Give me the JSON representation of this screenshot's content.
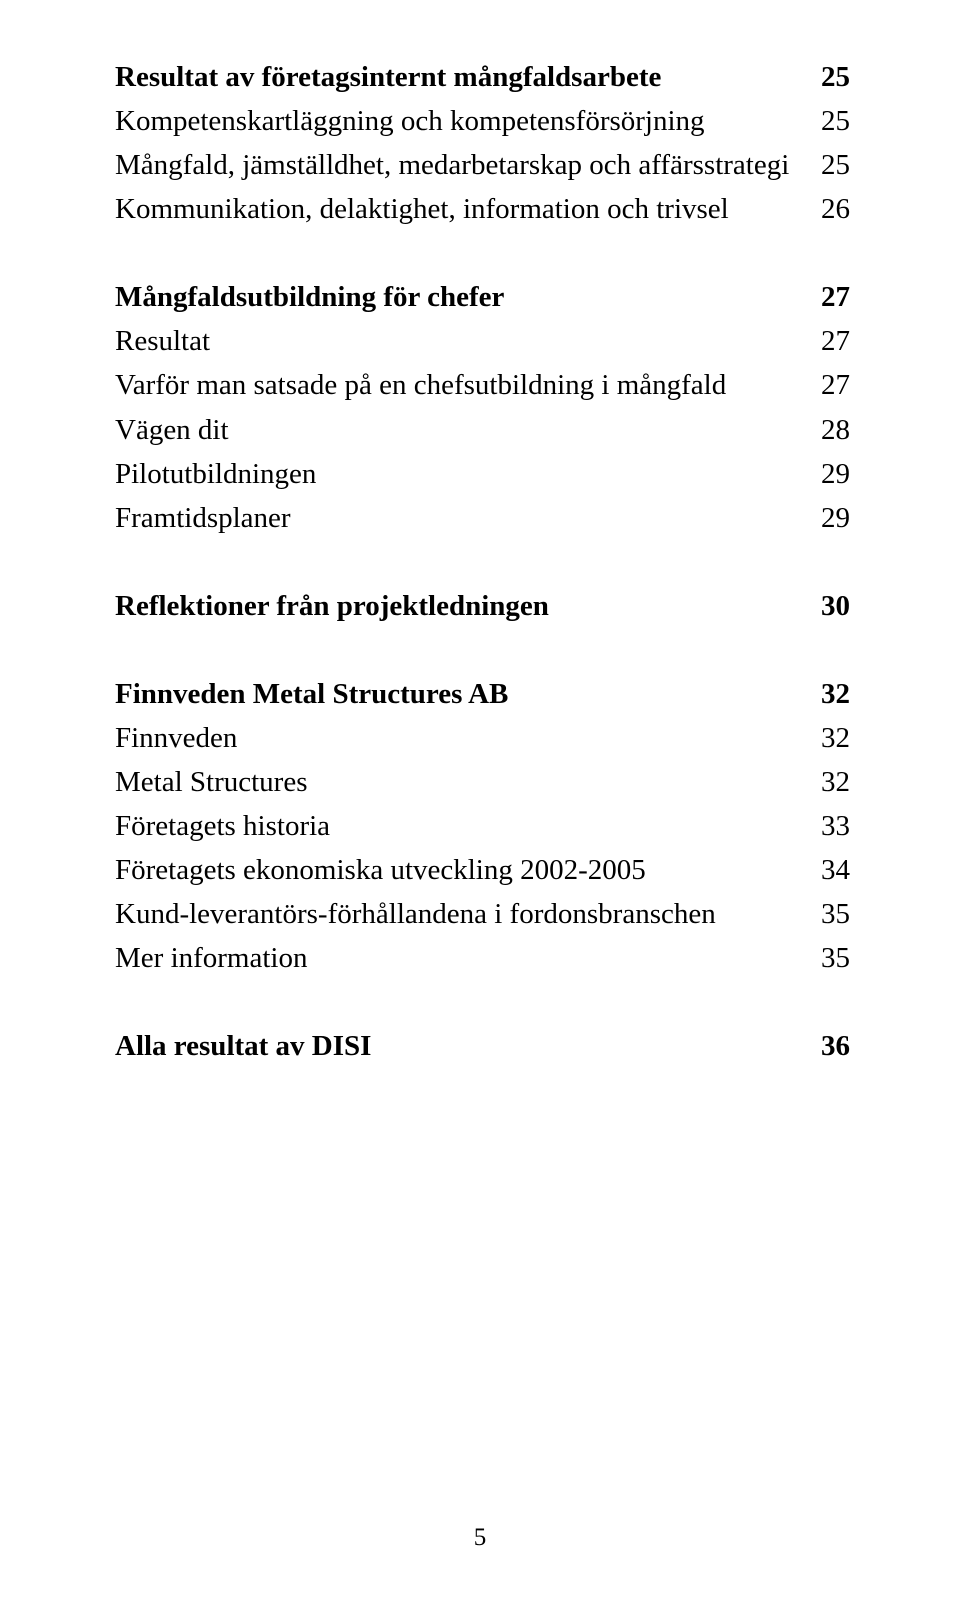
{
  "toc": [
    {
      "label": "Resultat av företagsinternt mångfaldsarbete",
      "page": "25",
      "bold": true,
      "gapBefore": false
    },
    {
      "label": "Kompetenskartläggning och kompetensförsörjning",
      "page": "25",
      "bold": false,
      "gapBefore": false
    },
    {
      "label": "Mångfald, jämställdhet, medarbetarskap och affärsstrategi",
      "page": "25",
      "bold": false,
      "gapBefore": false
    },
    {
      "label": "Kommunikation, delaktighet, information och trivsel",
      "page": "26",
      "bold": false,
      "gapBefore": false
    },
    {
      "label": "Mångfaldsutbildning för chefer",
      "page": "27",
      "bold": true,
      "gapBefore": true
    },
    {
      "label": "Resultat",
      "page": "27",
      "bold": false,
      "gapBefore": false
    },
    {
      "label": "Varför man satsade på en chefsutbildning i mångfald",
      "page": "27",
      "bold": false,
      "gapBefore": false
    },
    {
      "label": "Vägen dit",
      "page": "28",
      "bold": false,
      "gapBefore": false
    },
    {
      "label": "Pilotutbildningen",
      "page": "29",
      "bold": false,
      "gapBefore": false
    },
    {
      "label": "Framtidsplaner",
      "page": "29",
      "bold": false,
      "gapBefore": false
    },
    {
      "label": "Reflektioner från projektledningen",
      "page": "30",
      "bold": true,
      "gapBefore": true
    },
    {
      "label": "Finnveden Metal Structures AB",
      "page": "32",
      "bold": true,
      "gapBefore": true
    },
    {
      "label": "Finnveden",
      "page": "32",
      "bold": false,
      "gapBefore": false
    },
    {
      "label": "Metal Structures",
      "page": "32",
      "bold": false,
      "gapBefore": false
    },
    {
      "label": "Företagets historia",
      "page": "33",
      "bold": false,
      "gapBefore": false
    },
    {
      "label": "Företagets ekonomiska utveckling 2002-2005",
      "page": "34",
      "bold": false,
      "gapBefore": false
    },
    {
      "label": "Kund-leverantörs-förhållandena i fordonsbranschen",
      "page": "35",
      "bold": false,
      "gapBefore": false
    },
    {
      "label": "Mer information",
      "page": "35",
      "bold": false,
      "gapBefore": false
    },
    {
      "label": "Alla resultat av DISI",
      "page": "36",
      "bold": true,
      "gapBefore": true
    }
  ],
  "pageNumber": "5"
}
